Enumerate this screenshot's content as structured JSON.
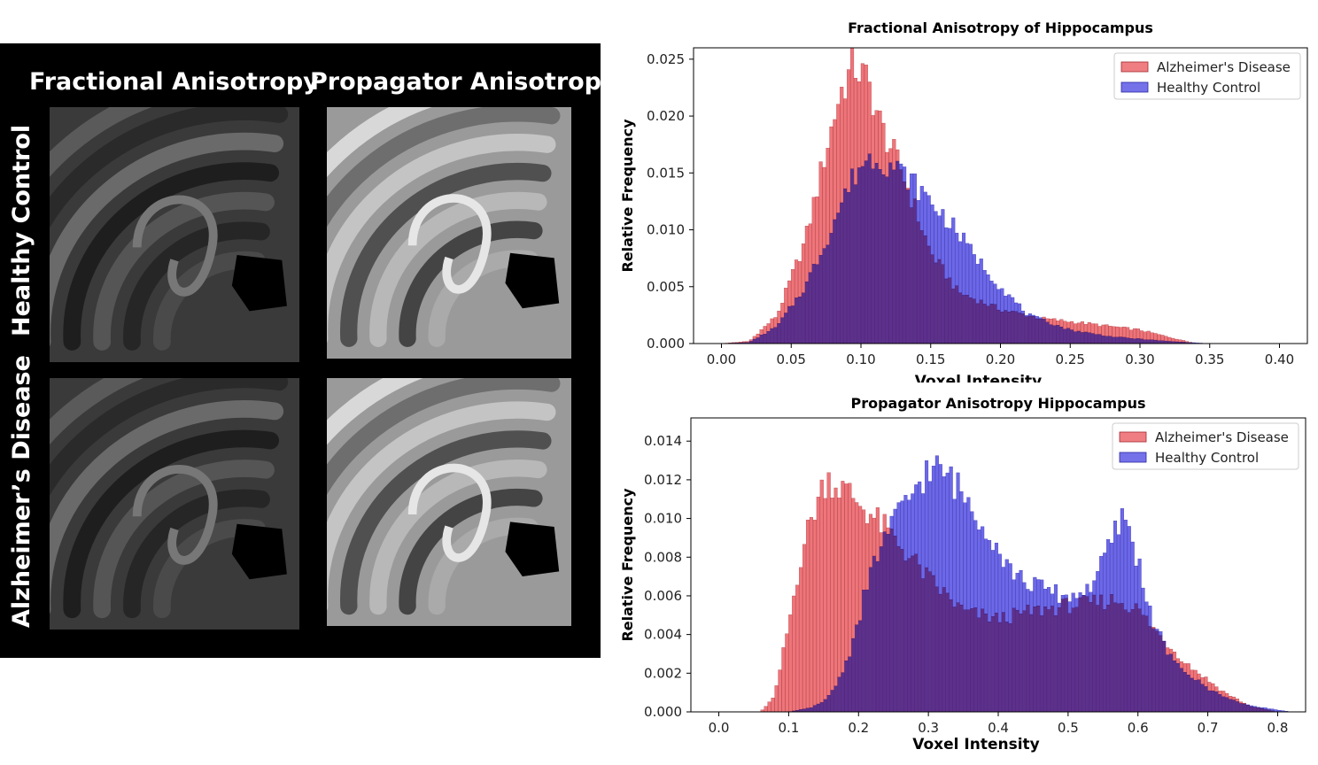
{
  "figure": {
    "columns": [
      "Fractional Anisotropy",
      "Propagator Anisotropy"
    ],
    "rows": [
      "Healthy Control",
      "Alzheimer’s Disease"
    ],
    "images": [
      {
        "row": "Healthy Control",
        "column": "Fractional Anisotropy",
        "tone": "dark"
      },
      {
        "row": "Healthy Control",
        "column": "Propagator Anisotropy",
        "tone": "light"
      },
      {
        "row": "Alzheimer’s Disease",
        "column": "Fractional Anisotropy",
        "tone": "dark"
      },
      {
        "row": "Alzheimer’s Disease",
        "column": "Propagator Anisotropy",
        "tone": "light"
      }
    ]
  },
  "colors": {
    "alzheimers": "#e8474d",
    "healthy": "#3b36e0",
    "overlap": "#4b1a80",
    "axis": "#000000"
  },
  "chart_data": [
    {
      "type": "bar",
      "title": "Fractional Anisotropy of Hippocampus",
      "xlabel": "Voxel Intensity",
      "ylabel": "Relative Frequency",
      "xlim": [
        -0.02,
        0.42
      ],
      "ylim": [
        0,
        0.026
      ],
      "xticks": [
        0.0,
        0.05,
        0.1,
        0.15,
        0.2,
        0.25,
        0.3,
        0.35,
        0.4
      ],
      "xtick_labels": [
        "0.00",
        "0.05",
        "0.10",
        "0.15",
        "0.20",
        "0.25",
        "0.30",
        "0.35",
        "0.40"
      ],
      "yticks": [
        0.0,
        0.005,
        0.01,
        0.015,
        0.02,
        0.025
      ],
      "ytick_labels": [
        "0.000",
        "0.005",
        "0.010",
        "0.015",
        "0.020",
        "0.025"
      ],
      "legend": {
        "position": "top-right",
        "entries": [
          "Alzheimer's Disease",
          "Healthy Control"
        ]
      },
      "bin_width": 0.0025,
      "series": [
        {
          "name": "Alzheimer's Disease",
          "profile": [
            [
              0.0,
              0
            ],
            [
              0.02,
              0.0002
            ],
            [
              0.04,
              0.0025
            ],
            [
              0.06,
              0.009
            ],
            [
              0.075,
              0.017
            ],
            [
              0.085,
              0.022
            ],
            [
              0.095,
              0.0245
            ],
            [
              0.105,
              0.023
            ],
            [
              0.115,
              0.019
            ],
            [
              0.13,
              0.015
            ],
            [
              0.15,
              0.008
            ],
            [
              0.17,
              0.0045
            ],
            [
              0.2,
              0.003
            ],
            [
              0.23,
              0.0022
            ],
            [
              0.26,
              0.0018
            ],
            [
              0.3,
              0.0012
            ],
            [
              0.33,
              0.0003
            ],
            [
              0.34,
              0
            ]
          ]
        },
        {
          "name": "Healthy Control",
          "profile": [
            [
              0.0,
              0
            ],
            [
              0.02,
              0.0001
            ],
            [
              0.04,
              0.0015
            ],
            [
              0.06,
              0.005
            ],
            [
              0.075,
              0.009
            ],
            [
              0.09,
              0.0135
            ],
            [
              0.1,
              0.0158
            ],
            [
              0.11,
              0.0165
            ],
            [
              0.12,
              0.0158
            ],
            [
              0.13,
              0.015
            ],
            [
              0.14,
              0.0138
            ],
            [
              0.15,
              0.0125
            ],
            [
              0.165,
              0.0105
            ],
            [
              0.18,
              0.008
            ],
            [
              0.2,
              0.005
            ],
            [
              0.22,
              0.0025
            ],
            [
              0.25,
              0.0012
            ],
            [
              0.28,
              0.0006
            ],
            [
              0.32,
              0.0002
            ],
            [
              0.35,
              0
            ]
          ]
        }
      ]
    },
    {
      "type": "bar",
      "title": "Propagator Anisotropy Hippocampus",
      "xlabel": "Voxel Intensity",
      "ylabel": "Relative Frequency",
      "xlim": [
        -0.04,
        0.84
      ],
      "ylim": [
        0,
        0.0152
      ],
      "xticks": [
        0.0,
        0.1,
        0.2,
        0.3,
        0.4,
        0.5,
        0.6,
        0.7,
        0.8
      ],
      "xtick_labels": [
        "0.0",
        "0.1",
        "0.2",
        "0.3",
        "0.4",
        "0.5",
        "0.6",
        "0.7",
        "0.8"
      ],
      "yticks": [
        0.0,
        0.002,
        0.004,
        0.006,
        0.008,
        0.01,
        0.012,
        0.014
      ],
      "ytick_labels": [
        "0.000",
        "0.002",
        "0.004",
        "0.006",
        "0.008",
        "0.010",
        "0.012",
        "0.014"
      ],
      "legend": {
        "position": "top-right",
        "entries": [
          "Alzheimer's Disease",
          "Healthy Control"
        ]
      },
      "bin_width": 0.005,
      "series": [
        {
          "name": "Alzheimer's Disease",
          "profile": [
            [
              0.06,
              0
            ],
            [
              0.08,
              0.0008
            ],
            [
              0.1,
              0.0045
            ],
            [
              0.12,
              0.0085
            ],
            [
              0.14,
              0.0108
            ],
            [
              0.155,
              0.0122
            ],
            [
              0.17,
              0.0117
            ],
            [
              0.19,
              0.0112
            ],
            [
              0.21,
              0.0105
            ],
            [
              0.24,
              0.0094
            ],
            [
              0.27,
              0.0082
            ],
            [
              0.3,
              0.0069
            ],
            [
              0.35,
              0.0052
            ],
            [
              0.4,
              0.0048
            ],
            [
              0.45,
              0.0052
            ],
            [
              0.5,
              0.0055
            ],
            [
              0.53,
              0.0056
            ],
            [
              0.57,
              0.0058
            ],
            [
              0.6,
              0.0053
            ],
            [
              0.63,
              0.004
            ],
            [
              0.67,
              0.0025
            ],
            [
              0.72,
              0.0011
            ],
            [
              0.76,
              0.0003
            ],
            [
              0.8,
              0
            ]
          ]
        },
        {
          "name": "Healthy Control",
          "profile": [
            [
              0.1,
              0
            ],
            [
              0.13,
              0.0002
            ],
            [
              0.15,
              0.0005
            ],
            [
              0.17,
              0.0015
            ],
            [
              0.19,
              0.0033
            ],
            [
              0.21,
              0.0062
            ],
            [
              0.23,
              0.0085
            ],
            [
              0.25,
              0.0098
            ],
            [
              0.27,
              0.0108
            ],
            [
              0.29,
              0.0122
            ],
            [
              0.31,
              0.0125
            ],
            [
              0.33,
              0.0122
            ],
            [
              0.35,
              0.0112
            ],
            [
              0.37,
              0.0103
            ],
            [
              0.39,
              0.0092
            ],
            [
              0.41,
              0.0078
            ],
            [
              0.43,
              0.0069
            ],
            [
              0.45,
              0.0066
            ],
            [
              0.47,
              0.0063
            ],
            [
              0.5,
              0.0059
            ],
            [
              0.53,
              0.0064
            ],
            [
              0.55,
              0.0077
            ],
            [
              0.57,
              0.0095
            ],
            [
              0.58,
              0.0102
            ],
            [
              0.6,
              0.0079
            ],
            [
              0.62,
              0.0048
            ],
            [
              0.65,
              0.0026
            ],
            [
              0.7,
              0.0012
            ],
            [
              0.75,
              0.0004
            ],
            [
              0.8,
              0.0001
            ],
            [
              0.82,
              0
            ]
          ]
        }
      ]
    }
  ]
}
